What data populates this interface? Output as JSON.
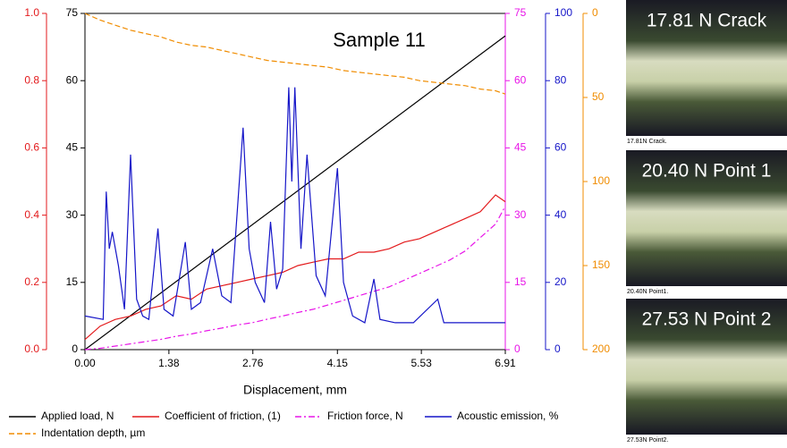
{
  "chart_data": {
    "type": "line",
    "title": "Sample 11",
    "xlabel": "Displacement, mm",
    "xlim": [
      0,
      6.91
    ],
    "xticks": [
      {
        "value": 0,
        "label": "0.00"
      },
      {
        "value": 1.38,
        "label": "1.38"
      },
      {
        "value": 2.76,
        "label": "2.76"
      },
      {
        "value": 4.15,
        "label": "4.15"
      },
      {
        "value": 5.53,
        "label": "5.53"
      },
      6.91
    ],
    "axes": {
      "cof": {
        "color": "#e31a1c",
        "lim": [
          0,
          1
        ],
        "ticks": [
          {
            "value": 0,
            "label": "0.0"
          },
          0.2,
          0.4,
          0.6,
          0.8,
          {
            "value": 1,
            "label": "1.0"
          }
        ]
      },
      "load": {
        "color": "#000000",
        "lim": [
          0,
          75
        ],
        "ticks": [
          0,
          15,
          30,
          45,
          60,
          75
        ]
      },
      "force": {
        "color": "#e815e8",
        "lim": [
          0,
          75
        ],
        "ticks": [
          0,
          15,
          30,
          45,
          60,
          75
        ]
      },
      "ae": {
        "color": "#1515c8",
        "lim": [
          0,
          100
        ],
        "ticks": [
          0,
          20,
          40,
          60,
          80,
          100
        ]
      },
      "depth": {
        "color": "#f08c00",
        "lim": [
          0,
          200
        ],
        "inverted": true,
        "ticks": [
          0,
          50,
          100,
          150,
          200
        ]
      }
    },
    "series": [
      {
        "name": "Applied load, N",
        "color": "#000000",
        "axis": "load",
        "dash": "solid",
        "x": [
          0,
          6.91
        ],
        "values": [
          0,
          70
        ]
      },
      {
        "name": "Coefficient of friction, (1)",
        "color": "#e31a1c",
        "axis": "cof",
        "dash": "solid",
        "x": [
          0,
          0.25,
          0.5,
          0.75,
          1,
          1.25,
          1.5,
          1.75,
          2,
          2.25,
          2.5,
          2.75,
          3,
          3.25,
          3.5,
          3.75,
          4,
          4.25,
          4.5,
          4.75,
          5,
          5.25,
          5.5,
          5.75,
          6,
          6.25,
          6.5,
          6.75,
          6.91
        ],
        "values": [
          0.03,
          0.07,
          0.09,
          0.1,
          0.12,
          0.13,
          0.16,
          0.15,
          0.18,
          0.19,
          0.2,
          0.21,
          0.22,
          0.23,
          0.25,
          0.26,
          0.27,
          0.27,
          0.29,
          0.29,
          0.3,
          0.32,
          0.33,
          0.35,
          0.37,
          0.39,
          0.41,
          0.46,
          0.44
        ]
      },
      {
        "name": "Friction force, N",
        "color": "#e815e8",
        "axis": "force",
        "dash": "dashdot",
        "x": [
          0,
          0.25,
          0.5,
          0.75,
          1,
          1.25,
          1.5,
          1.75,
          2,
          2.25,
          2.5,
          2.75,
          3,
          3.25,
          3.5,
          3.75,
          4,
          4.25,
          4.5,
          4.75,
          5,
          5.25,
          5.5,
          5.75,
          6,
          6.25,
          6.5,
          6.75,
          6.91
        ],
        "values": [
          0,
          0.3,
          0.8,
          1.3,
          1.8,
          2.3,
          3,
          3.5,
          4.2,
          4.8,
          5.5,
          6,
          6.8,
          7.5,
          8.3,
          9,
          10,
          11,
          12,
          13,
          14,
          15.5,
          17,
          18.5,
          20,
          22,
          25,
          28,
          32
        ]
      },
      {
        "name": "Acoustic emission, %",
        "color": "#1515c8",
        "axis": "ae",
        "dash": "solid",
        "x": [
          0,
          0.3,
          0.35,
          0.4,
          0.45,
          0.55,
          0.65,
          0.75,
          0.85,
          0.95,
          1.05,
          1.2,
          1.3,
          1.45,
          1.65,
          1.75,
          1.9,
          2.1,
          2.25,
          2.4,
          2.6,
          2.7,
          2.8,
          2.95,
          3.05,
          3.15,
          3.25,
          3.35,
          3.4,
          3.45,
          3.55,
          3.65,
          3.8,
          3.95,
          4.15,
          4.25,
          4.4,
          4.6,
          4.75,
          4.85,
          5.1,
          5.4,
          5.8,
          5.9,
          6.3,
          6.91
        ],
        "values": [
          10,
          9,
          47,
          30,
          35,
          25,
          12,
          58,
          15,
          10,
          9,
          36,
          12,
          10,
          32,
          12,
          14,
          30,
          16,
          14,
          66,
          30,
          20,
          14,
          38,
          18,
          24,
          78,
          50,
          78,
          30,
          58,
          22,
          16,
          54,
          20,
          10,
          8,
          21,
          9,
          8,
          8,
          15,
          8,
          8,
          8
        ]
      },
      {
        "name": "Indentation depth, µm",
        "color": "#f08c00",
        "axis": "depth",
        "dash": "dashed",
        "x": [
          0,
          0.25,
          0.5,
          0.75,
          1,
          1.25,
          1.5,
          1.75,
          2,
          2.25,
          2.5,
          2.75,
          3,
          3.25,
          3.5,
          3.75,
          4,
          4.25,
          4.5,
          4.75,
          5,
          5.25,
          5.5,
          5.75,
          6,
          6.25,
          6.5,
          6.75,
          6.91
        ],
        "values": [
          0,
          4,
          7,
          10,
          12,
          14,
          17,
          19,
          20,
          22,
          24,
          26,
          28,
          29,
          30,
          31,
          32,
          34,
          35,
          36,
          37,
          38,
          40,
          41,
          42,
          43,
          45,
          46,
          48
        ]
      }
    ]
  },
  "images": [
    {
      "title": "17.81 N Crack",
      "caption": "17.81N Crack."
    },
    {
      "title": "20.40 N Point 1",
      "caption": "20.40N Point1."
    },
    {
      "title": "27.53 N Point 2",
      "caption": "27.53N Point2."
    }
  ]
}
